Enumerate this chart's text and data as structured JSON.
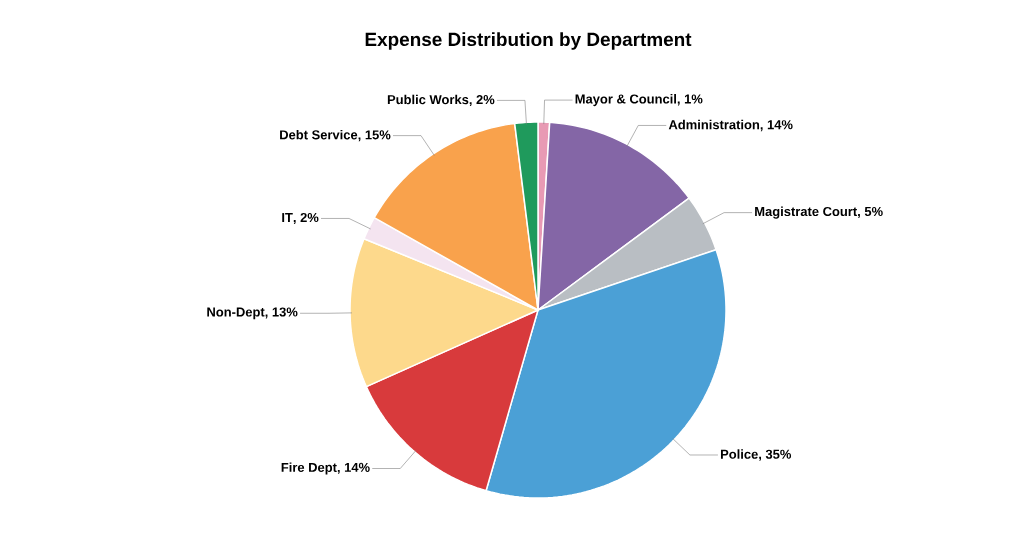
{
  "chart_data": {
    "type": "pie",
    "title": "Expense Distribution by Department",
    "categories": [
      "Mayor & Council",
      "Administration",
      "Magistrate Court",
      "Police",
      "Fire Dept",
      "Non-Dept",
      "IT",
      "Debt Service",
      "Public Works"
    ],
    "values": [
      1,
      14,
      5,
      35,
      14,
      13,
      2,
      15,
      2
    ],
    "colors": [
      "#e89ab4",
      "#8466a6",
      "#b9bec3",
      "#4ba0d6",
      "#d83a3c",
      "#fdd98c",
      "#f4e4f0",
      "#f9a24c",
      "#1f9a5c"
    ],
    "value_labels": [
      ", 1%",
      ", 14%",
      ", 5%",
      ", 35%",
      ", 14%",
      ", 13%",
      ", 2%",
      ", 15%",
      ", 2%"
    ]
  }
}
